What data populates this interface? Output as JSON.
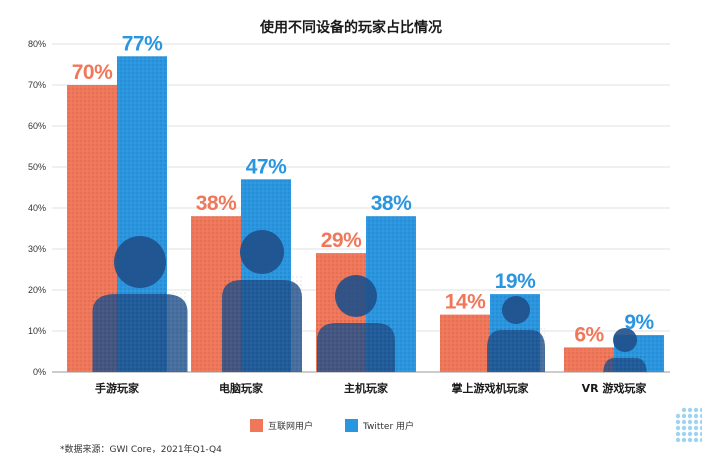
{
  "chart_data": {
    "type": "bar",
    "title": "使用不同设备的玩家占比情况",
    "categories": [
      "手游玩家",
      "电脑玩家",
      "主机玩家",
      "掌上游戏机玩家",
      "VR 游戏玩家"
    ],
    "series": [
      {
        "name": "互联网用户",
        "values": [
          70,
          38,
          29,
          14,
          6
        ],
        "labels": [
          "70%",
          "38%",
          "29%",
          "14%",
          "6%"
        ],
        "color": "#f0775a"
      },
      {
        "name": "Twitter 用户",
        "values": [
          77,
          47,
          38,
          19,
          9
        ],
        "labels": [
          "77%",
          "47%",
          "38%",
          "19%",
          "9%"
        ],
        "color": "#2a96e0"
      }
    ],
    "yticks": [
      "0%",
      "10%",
      "20%",
      "30%",
      "40%",
      "50%",
      "60%",
      "70%",
      "80%"
    ],
    "ylim": [
      0,
      80
    ],
    "grid": true,
    "legend_position": "bottom-center",
    "source_note": "*数据来源：GWI Core，2021年Q1-Q4"
  },
  "colors": {
    "grid": "#d9d9d9",
    "axis": "#999999",
    "photo_overlay": "#1f4f8a",
    "dots": "#9ed4f2"
  }
}
